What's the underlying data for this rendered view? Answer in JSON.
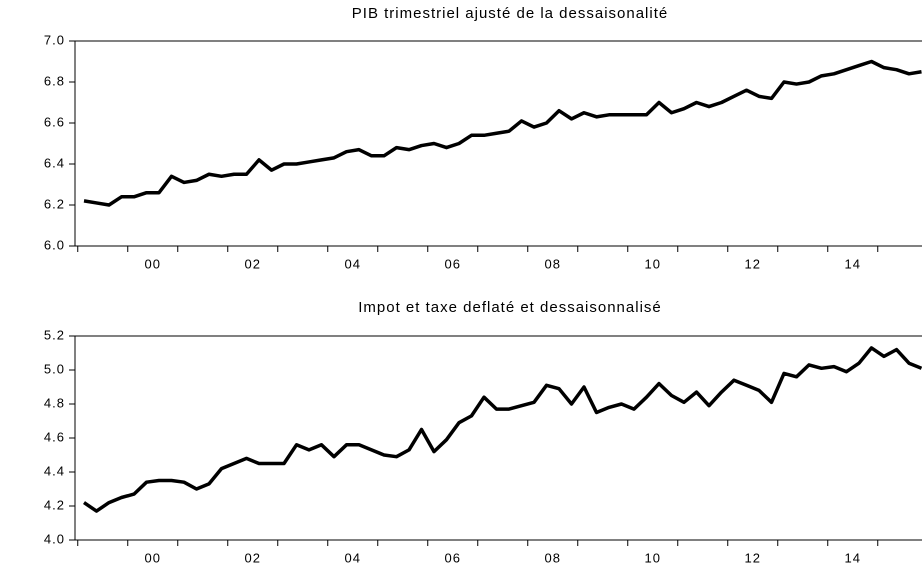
{
  "chart_data": [
    {
      "type": "line",
      "title": "PIB trimestriel ajusté de la dessaisonalité",
      "categories": [
        null,
        null,
        null,
        null,
        null,
        "00",
        null,
        null,
        null,
        null,
        null,
        null,
        null,
        "02",
        null,
        null,
        null,
        null,
        null,
        null,
        null,
        "04",
        null,
        null,
        null,
        null,
        null,
        null,
        null,
        "06",
        null,
        null,
        null,
        null,
        null,
        null,
        null,
        "08",
        null,
        null,
        null,
        null,
        null,
        null,
        null,
        "10",
        null,
        null,
        null,
        null,
        null,
        null,
        null,
        "12",
        null,
        null,
        null,
        null,
        null,
        null,
        null,
        "14",
        null,
        null,
        null,
        null,
        null,
        null
      ],
      "series": [
        {
          "color": "#000000",
          "values": [
            6.22,
            6.21,
            6.2,
            6.24,
            6.24,
            6.26,
            6.26,
            6.34,
            6.31,
            6.32,
            6.35,
            6.34,
            6.35,
            6.35,
            6.42,
            6.37,
            6.4,
            6.4,
            6.41,
            6.42,
            6.43,
            6.46,
            6.47,
            6.44,
            6.44,
            6.48,
            6.47,
            6.49,
            6.5,
            6.48,
            6.5,
            6.54,
            6.54,
            6.55,
            6.56,
            6.61,
            6.58,
            6.6,
            6.66,
            6.62,
            6.65,
            6.63,
            6.64,
            6.64,
            6.64,
            6.64,
            6.7,
            6.65,
            6.67,
            6.7,
            6.68,
            6.7,
            6.73,
            6.76,
            6.73,
            6.72,
            6.8,
            6.79,
            6.8,
            6.83,
            6.84,
            6.86,
            6.88,
            6.9,
            6.87,
            6.86,
            6.84,
            6.85
          ]
        }
      ],
      "ylim": [
        6.0,
        7.0
      ],
      "yticks": [
        {
          "value": 6.0,
          "label": "6.0"
        },
        6.2,
        6.4,
        6.6,
        6.8,
        {
          "value": 7.0,
          "label": "7.0"
        }
      ]
    },
    {
      "type": "line",
      "title": "Impot et taxe deflaté et dessaisonnalisé",
      "categories": [
        null,
        null,
        null,
        null,
        null,
        "00",
        null,
        null,
        null,
        null,
        null,
        null,
        null,
        "02",
        null,
        null,
        null,
        null,
        null,
        null,
        null,
        "04",
        null,
        null,
        null,
        null,
        null,
        null,
        null,
        "06",
        null,
        null,
        null,
        null,
        null,
        null,
        null,
        "08",
        null,
        null,
        null,
        null,
        null,
        null,
        null,
        "10",
        null,
        null,
        null,
        null,
        null,
        null,
        null,
        "12",
        null,
        null,
        null,
        null,
        null,
        null,
        null,
        "14",
        null,
        null,
        null,
        null,
        null,
        null
      ],
      "series": [
        {
          "color": "#000000",
          "values": [
            4.22,
            4.17,
            4.22,
            4.25,
            4.27,
            4.34,
            4.35,
            4.35,
            4.34,
            4.3,
            4.33,
            4.42,
            4.45,
            4.48,
            4.45,
            4.45,
            4.45,
            4.56,
            4.53,
            4.56,
            4.49,
            4.56,
            4.56,
            4.53,
            4.5,
            4.49,
            4.53,
            4.65,
            4.52,
            4.59,
            4.69,
            4.73,
            4.84,
            4.77,
            4.77,
            4.79,
            4.81,
            4.91,
            4.89,
            4.8,
            4.9,
            4.75,
            4.78,
            4.8,
            4.77,
            4.84,
            4.92,
            4.85,
            4.81,
            4.87,
            4.79,
            4.87,
            4.94,
            4.91,
            4.88,
            4.81,
            4.98,
            4.96,
            5.03,
            5.01,
            5.02,
            4.99,
            5.04,
            5.13,
            5.08,
            5.12,
            5.04,
            5.01
          ]
        }
      ],
      "ylim": [
        4.0,
        5.2
      ],
      "yticks": [
        {
          "value": 4.0,
          "label": "4.0"
        },
        4.2,
        4.4,
        4.6,
        4.8,
        {
          "value": 5.0,
          "label": "5.0"
        },
        5.2
      ]
    }
  ]
}
